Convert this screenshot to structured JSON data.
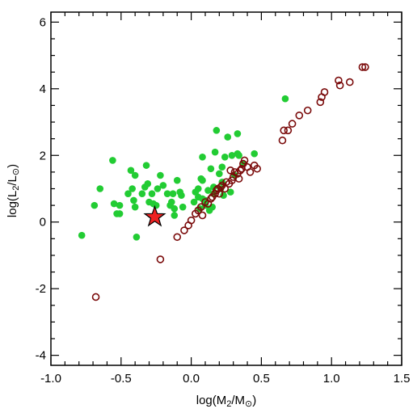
{
  "chart_data": {
    "type": "scatter",
    "xlabel": {
      "base": "log(M",
      "sub": "2",
      "mid": "/M",
      "sub2": "⊙",
      "end": ")"
    },
    "ylabel": {
      "base": "log(L",
      "sub": "2",
      "mid": "/L",
      "sub2": "⊙",
      "end": ")"
    },
    "xlim": [
      -1.0,
      1.5
    ],
    "ylim": [
      -4.3,
      6.3
    ],
    "x_ticks": [
      -1.0,
      -0.5,
      0.0,
      0.5,
      1.0,
      1.5
    ],
    "x_tick_labels": [
      "-1.0",
      "-0.5",
      "0.0",
      "0.5",
      "1.0",
      "1.5"
    ],
    "y_ticks": [
      -4,
      -2,
      0,
      2,
      4,
      6
    ],
    "y_tick_labels": [
      "-4",
      "-2",
      "0",
      "2",
      "4",
      "6"
    ],
    "grid": false,
    "colors": {
      "green": "#22cc33",
      "red_open": "#7a0a0a",
      "star": "#ee2222"
    },
    "series": [
      {
        "marker": "filled-circle",
        "color": "green",
        "points": [
          [
            -0.78,
            -0.4
          ],
          [
            -0.69,
            0.5
          ],
          [
            -0.65,
            1.0
          ],
          [
            -0.56,
            1.85
          ],
          [
            -0.55,
            0.55
          ],
          [
            -0.53,
            0.25
          ],
          [
            -0.51,
            0.5
          ],
          [
            -0.51,
            0.25
          ],
          [
            -0.45,
            0.85
          ],
          [
            -0.43,
            1.55
          ],
          [
            -0.42,
            1.0
          ],
          [
            -0.41,
            0.65
          ],
          [
            -0.4,
            0.45
          ],
          [
            -0.4,
            1.4
          ],
          [
            -0.39,
            -0.45
          ],
          [
            -0.35,
            0.85
          ],
          [
            -0.33,
            1.05
          ],
          [
            -0.32,
            1.7
          ],
          [
            -0.31,
            1.15
          ],
          [
            -0.3,
            0.6
          ],
          [
            -0.28,
            0.85
          ],
          [
            -0.27,
            0.55
          ],
          [
            -0.25,
            0.5
          ],
          [
            -0.24,
            1.0
          ],
          [
            -0.22,
            1.4
          ],
          [
            -0.2,
            1.1
          ],
          [
            -0.17,
            0.85
          ],
          [
            -0.15,
            0.5
          ],
          [
            -0.14,
            0.6
          ],
          [
            -0.13,
            0.85
          ],
          [
            -0.12,
            0.4
          ],
          [
            -0.12,
            0.2
          ],
          [
            -0.1,
            1.25
          ],
          [
            -0.08,
            0.9
          ],
          [
            -0.07,
            0.8
          ],
          [
            -0.06,
            0.45
          ],
          [
            0.02,
            0.6
          ],
          [
            0.03,
            0.9
          ],
          [
            0.05,
            1.0
          ],
          [
            0.05,
            0.75
          ],
          [
            0.06,
            0.4
          ],
          [
            0.07,
            1.3
          ],
          [
            0.08,
            1.25
          ],
          [
            0.08,
            1.95
          ],
          [
            0.08,
            0.7
          ],
          [
            0.1,
            0.5
          ],
          [
            0.12,
            0.95
          ],
          [
            0.13,
            0.35
          ],
          [
            0.14,
            1.6
          ],
          [
            0.15,
            0.45
          ],
          [
            0.16,
            0.85
          ],
          [
            0.17,
            2.1
          ],
          [
            0.18,
            2.75
          ],
          [
            0.2,
            1.45
          ],
          [
            0.21,
            1.0
          ],
          [
            0.22,
            1.65
          ],
          [
            0.23,
            0.8
          ],
          [
            0.24,
            1.95
          ],
          [
            0.26,
            2.55
          ],
          [
            0.28,
            0.9
          ],
          [
            0.29,
            2.0
          ],
          [
            0.31,
            1.4
          ],
          [
            0.33,
            2.05
          ],
          [
            0.34,
            2.0
          ],
          [
            0.37,
            1.75
          ],
          [
            0.45,
            2.05
          ],
          [
            0.33,
            2.65
          ],
          [
            0.22,
            1.2
          ],
          [
            0.16,
            1.05
          ],
          [
            0.1,
            0.65
          ],
          [
            0.67,
            3.7
          ]
        ]
      },
      {
        "marker": "open-circle",
        "color": "red_open",
        "points": [
          [
            -0.68,
            -2.25
          ],
          [
            -0.22,
            -1.12
          ],
          [
            -0.1,
            -0.45
          ],
          [
            -0.05,
            -0.25
          ],
          [
            -0.02,
            -0.1
          ],
          [
            0.0,
            0.05
          ],
          [
            0.03,
            0.25
          ],
          [
            0.05,
            0.35
          ],
          [
            0.07,
            0.45
          ],
          [
            0.08,
            0.2
          ],
          [
            0.1,
            0.6
          ],
          [
            0.12,
            0.55
          ],
          [
            0.14,
            0.7
          ],
          [
            0.15,
            0.75
          ],
          [
            0.17,
            0.85
          ],
          [
            0.18,
            0.95
          ],
          [
            0.19,
            1.0
          ],
          [
            0.2,
            0.85
          ],
          [
            0.21,
            1.05
          ],
          [
            0.22,
            1.1
          ],
          [
            0.24,
            1.0
          ],
          [
            0.25,
            1.2
          ],
          [
            0.27,
            1.15
          ],
          [
            0.29,
            1.25
          ],
          [
            0.3,
            1.35
          ],
          [
            0.31,
            1.5
          ],
          [
            0.33,
            1.45
          ],
          [
            0.35,
            1.55
          ],
          [
            0.36,
            1.6
          ],
          [
            0.37,
            1.75
          ],
          [
            0.38,
            1.85
          ],
          [
            0.4,
            1.65
          ],
          [
            0.42,
            1.5
          ],
          [
            0.45,
            1.7
          ],
          [
            0.47,
            1.6
          ],
          [
            0.65,
            2.45
          ],
          [
            0.66,
            2.75
          ],
          [
            0.69,
            2.75
          ],
          [
            0.72,
            2.95
          ],
          [
            0.77,
            3.2
          ],
          [
            0.83,
            3.35
          ],
          [
            0.92,
            3.6
          ],
          [
            0.93,
            3.75
          ],
          [
            0.95,
            3.9
          ],
          [
            1.05,
            4.25
          ],
          [
            1.06,
            4.1
          ],
          [
            1.13,
            4.2
          ],
          [
            1.22,
            4.65
          ],
          [
            1.24,
            4.65
          ],
          [
            0.28,
            1.55
          ],
          [
            0.34,
            1.3
          ]
        ]
      },
      {
        "marker": "star",
        "color": "star",
        "points": [
          [
            -0.26,
            0.15
          ]
        ]
      }
    ]
  }
}
